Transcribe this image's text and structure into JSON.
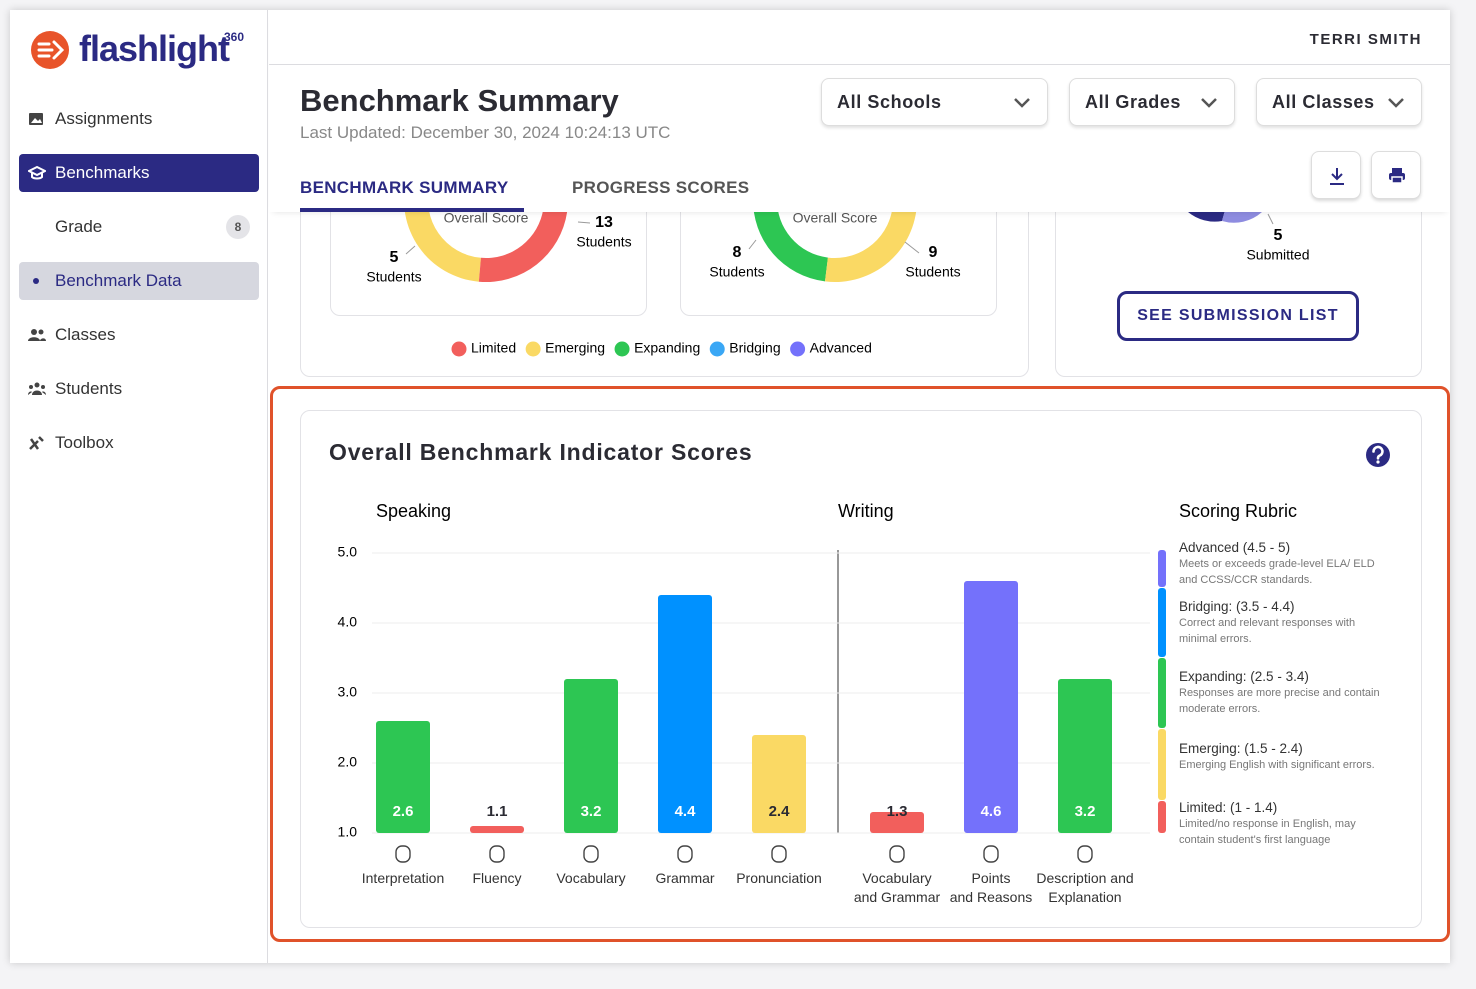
{
  "brand": {
    "name": "flashlight",
    "sup": "360"
  },
  "nav": [
    {
      "label": "Assignments"
    },
    {
      "label": "Benchmarks"
    },
    {
      "label": "Grade",
      "badge": 8
    },
    {
      "label": "Benchmark Data"
    },
    {
      "label": "Classes"
    },
    {
      "label": "Students"
    },
    {
      "label": "Toolbox"
    }
  ],
  "user": "TERRI SMITH",
  "header": {
    "title": "Benchmark Summary",
    "updated": "Last Updated: December 30, 2024 10:24:13 UTC"
  },
  "filters": [
    "All Schools",
    "All Grades",
    "All Classes"
  ],
  "tabs": [
    "BENCHMARK SUMMARY",
    "PROGRESS SCORES"
  ],
  "summary": {
    "donuts": [
      {
        "label": "Overall Score",
        "segments": [
          {
            "count": 5,
            "unit": "Students",
            "color": "#fad964"
          },
          {
            "count": 13,
            "unit": "Students",
            "color": "#f25f5c"
          }
        ]
      },
      {
        "label": "Overall Score",
        "segments": [
          {
            "count": 8,
            "unit": "Students",
            "color": "#2dc653"
          },
          {
            "count": 9,
            "unit": "Students",
            "color": "#fad964"
          }
        ]
      }
    ],
    "legend": [
      {
        "name": "Limited",
        "color": "#f25f5c"
      },
      {
        "name": "Emerging",
        "color": "#fad964"
      },
      {
        "name": "Expanding",
        "color": "#2dc653"
      },
      {
        "name": "Bridging",
        "color": "#3aa7f5"
      },
      {
        "name": "Advanced",
        "color": "#7471fb"
      }
    ],
    "submitted": {
      "count": 5,
      "label": "Submitted"
    },
    "button": "SEE SUBMISSION LIST"
  },
  "chart_data": {
    "type": "bar",
    "title": "Overall Benchmark Indicator Scores",
    "groups": [
      "Speaking",
      "Writing"
    ],
    "categories": [
      "Interpretation",
      "Fluency",
      "Vocabulary",
      "Grammar",
      "Pronunciation",
      "Vocabulary\nand Grammar",
      "Points\nand Reasons",
      "Description and\nExplanation"
    ],
    "values": [
      2.6,
      1.1,
      3.2,
      4.4,
      2.4,
      1.3,
      4.6,
      3.2
    ],
    "colors": [
      "#2dc653",
      "#f25f5c",
      "#2dc653",
      "#0091ff",
      "#fad964",
      "#f25f5c",
      "#7471fb",
      "#2dc653"
    ],
    "ylim": [
      1,
      5
    ],
    "yticks": [
      {
        "value": 1,
        "label": "1.0"
      },
      {
        "value": 2,
        "label": "2.0"
      },
      {
        "value": 3,
        "label": "3.0"
      },
      {
        "value": 4,
        "label": "4.0"
      },
      {
        "value": 5,
        "label": "5.0"
      }
    ],
    "grid": true
  },
  "rubric": {
    "title": "Scoring Rubric",
    "items": [
      {
        "label": "Advanced (4.5 - 5)",
        "description": "Meets or exceeds grade-level ELA/ ELD and CCSS/CCR standards.",
        "color": "#7471fb"
      },
      {
        "label": "Bridging: (3.5 - 4.4)",
        "description": "Correct and relevant responses with minimal errors.",
        "color": "#0091ff"
      },
      {
        "label": "Expanding: (2.5 - 3.4)",
        "description": "Responses are more precise and contain moderate errors.",
        "color": "#2dc653"
      },
      {
        "label": "Emerging: (1.5 - 2.4)",
        "description": "Emerging English with significant errors.",
        "color": "#fad964"
      },
      {
        "label": "Limited: (1 - 1.4)",
        "description": "Limited/no response in English, may contain student's first language",
        "color": "#f25f5c"
      }
    ]
  }
}
